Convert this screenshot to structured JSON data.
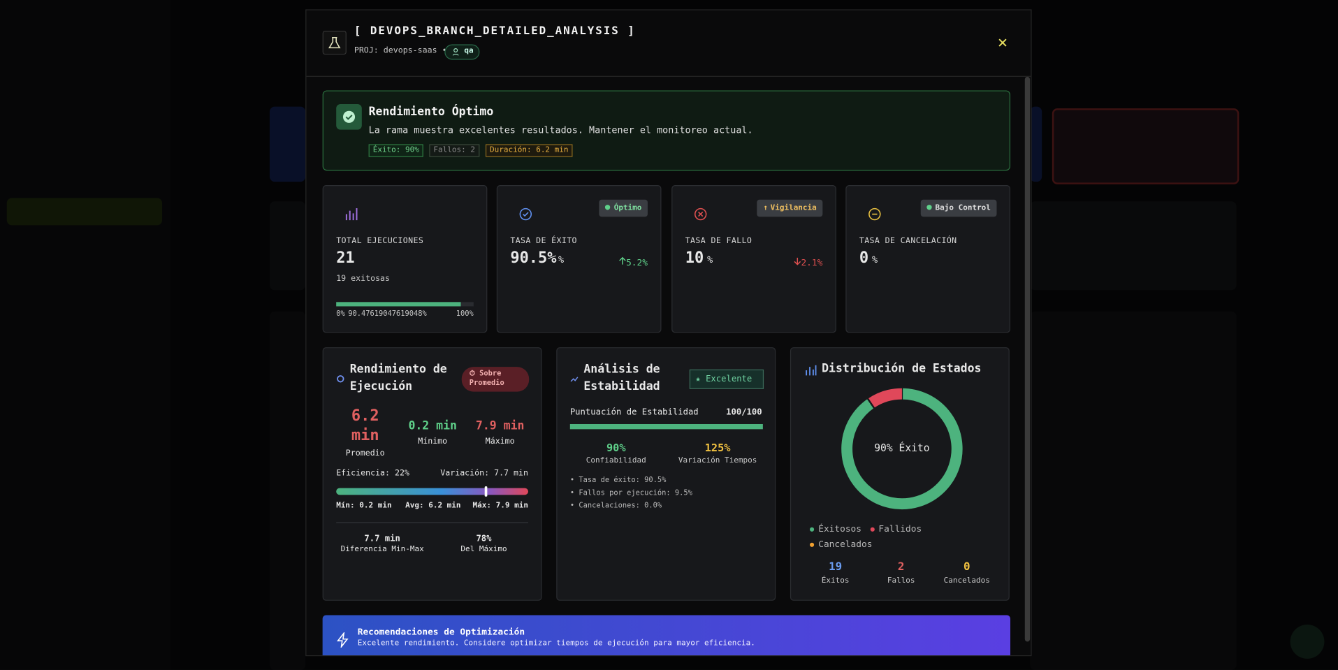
{
  "header": {
    "title": "[ DEVOPS_BRANCH_DETAILED_ANALYSIS ]",
    "project": "PROJ: devops-saas •",
    "environment": "qa"
  },
  "banner": {
    "title": "Rendimiento Óptimo",
    "message": "La rama muestra excelentes resultados. Mantener el monitoreo actual.",
    "tags": [
      "Éxito: 90%",
      "Fallos: 2",
      "Duración: 6.2 min"
    ]
  },
  "metrics": [
    {
      "label": "TOTAL EJECUCIONES",
      "value": "21",
      "detail": "19 exitosas",
      "progress": {
        "value": 90.47619047619048,
        "label": "90.47619047619048%",
        "start": "0%",
        "end": "100%"
      }
    },
    {
      "badge": "Óptimo",
      "label": "TASA DE ÉXITO",
      "value": "90.5%",
      "unit": "%",
      "change": "5.2%"
    },
    {
      "badge": "Vigilancia",
      "label": "TASA DE FALLO",
      "value": "10",
      "unit": "%",
      "change": "2.1%"
    },
    {
      "badge": "Bajo Control",
      "label": "TASA DE CANCELACIÓN",
      "value": "0",
      "unit": "%"
    }
  ],
  "performance": {
    "title": "Rendimiento de Ejecución",
    "badge": "Sobre Promedio",
    "average": "6.2 min",
    "average_label": "Promedio",
    "minimum": "0.2 min",
    "minimum_label": "Mínimo",
    "maximum": "7.9 min",
    "maximum_label": "Máximo",
    "efficiency": "Eficiencia: 22%",
    "variation": "Variación: 7.7 min",
    "range": {
      "min": {
        "value": 0.2,
        "label": "Mín: 0.2 min"
      },
      "avg": {
        "value": 6.2,
        "label": "Avg: 6.2 min"
      },
      "max": {
        "value": 7.9,
        "label": "Máx: 7.9 min"
      }
    },
    "summary": [
      {
        "value": "7.7 min",
        "label": "Diferencia Min-Max"
      },
      {
        "value": "78%",
        "label": "Del Máximo"
      }
    ]
  },
  "stability": {
    "title": "Análisis de Estabilidad",
    "badge": "Excelente",
    "score_label": "Puntuación de Estabilidad",
    "score": {
      "value": 100,
      "label": "100/100"
    },
    "stats": [
      {
        "value": "90%",
        "label": "Confiabilidad"
      },
      {
        "value": "125%",
        "label": "Variación Tiempos"
      }
    ],
    "notes": [
      "• Tasa de éxito: 90.5%",
      "• Fallos por ejecución: 9.5%",
      "• Cancelaciones: 0.0%"
    ]
  },
  "distribution": {
    "title": "Distribución de Estados",
    "center": "90% Éxito",
    "series": [
      {
        "name": "Éxitosos",
        "color": "#4db37e",
        "value": 19,
        "label": "Éxitos"
      },
      {
        "name": "Fallidos",
        "color": "#e0485a",
        "value": 2,
        "label": "Fallos"
      },
      {
        "name": "Cancelados",
        "color": "#f0a030",
        "value": 0,
        "label": "Cancelados"
      }
    ]
  },
  "recommendation": {
    "title": "Recomendaciones de Optimización",
    "message": "Excelente rendimiento. Considere optimizar tiempos de ejecución para mayor eficiencia."
  }
}
